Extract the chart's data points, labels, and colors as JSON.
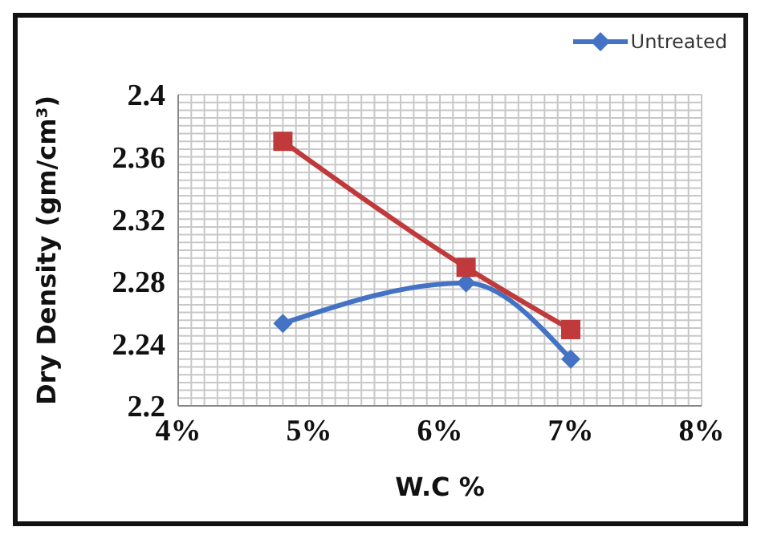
{
  "chart_data": {
    "type": "line",
    "xlabel": "W.C %",
    "ylabel": "Dry Density (gm/cm³)",
    "xlim": [
      4,
      8
    ],
    "xticks": [
      {
        "value": 4,
        "label": "4%"
      },
      {
        "value": 5,
        "label": "5%"
      },
      {
        "value": 6,
        "label": "6%"
      },
      {
        "value": 7,
        "label": "7%"
      },
      {
        "value": 8,
        "label": "8%"
      }
    ],
    "ylim": [
      2.2,
      2.4
    ],
    "yticks": [
      2.2,
      2.24,
      2.28,
      2.32,
      2.36,
      2.4
    ],
    "grid": true,
    "legend": "top right",
    "series": [
      {
        "name": "Untreated",
        "color": "#4472c4",
        "marker": "diamond",
        "x": [
          4.8,
          6.2,
          7.0
        ],
        "values": [
          2.253,
          2.279,
          2.23
        ]
      },
      {
        "color": "#c0393b",
        "marker": "square",
        "x": [
          4.8,
          6.2,
          7.0
        ],
        "values": [
          2.37,
          2.289,
          2.249
        ]
      }
    ]
  }
}
